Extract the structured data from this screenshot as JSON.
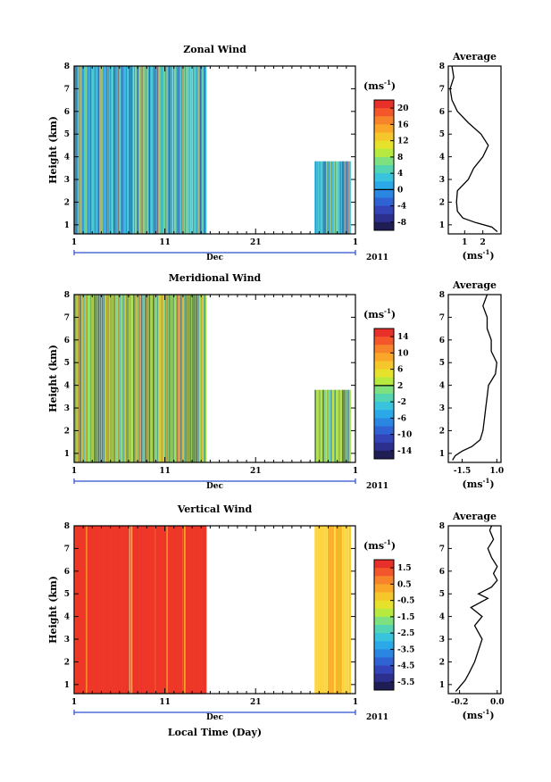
{
  "chart_data": [
    {
      "type": "heatmap",
      "title": "Zonal Wind",
      "ylabel": "Height (km)",
      "ylim": [
        0.6,
        8
      ],
      "yticks": [
        1,
        2,
        3,
        4,
        5,
        6,
        7,
        8
      ],
      "xlim": [
        1,
        32
      ],
      "xticks": [
        "1",
        "11",
        "21",
        "1"
      ],
      "xaxis_month": "Dec",
      "xaxis_year": "2011",
      "colorbar_unit": "(ms",
      "unit_exponent": "-1",
      "colorbar_labels": [
        "20",
        "16",
        "12",
        "8",
        "4",
        "0",
        "-4",
        "-8"
      ],
      "colorbar_colors": [
        "#e8302a",
        "#f2562a",
        "#f7832a",
        "#f9a629",
        "#f5c72a",
        "#e6e22c",
        "#b7ea3f",
        "#7ee07e",
        "#53d4b3",
        "#38c4dc",
        "#2aa8e8",
        "#2a86e0",
        "#2f62d2",
        "#3344b8",
        "#2c2f8e",
        "#1e1e55"
      ],
      "data_segments": [
        {
          "start_day": 1,
          "end_day": 15.6
        },
        {
          "start_day": 27.5,
          "end_day": 31.5
        }
      ],
      "dominant_color": "#48c8e0",
      "profile": {
        "title": "Average",
        "xlabel": "(ms",
        "xticks": [
          "1",
          "2"
        ],
        "xticks_values": [
          1,
          2
        ],
        "xlim": [
          0.1,
          3.0
        ],
        "height": [
          0.7,
          0.9,
          1.1,
          1.3,
          1.6,
          2.0,
          2.5,
          3.0,
          3.5,
          4.0,
          4.5,
          5.0,
          5.5,
          6.0,
          6.5,
          7.0,
          7.5,
          8.0
        ],
        "value": [
          2.8,
          2.5,
          1.6,
          0.9,
          0.6,
          0.55,
          0.6,
          1.2,
          1.5,
          2.0,
          2.3,
          1.9,
          1.2,
          0.6,
          0.3,
          0.2,
          0.4,
          0.3
        ]
      }
    },
    {
      "type": "heatmap",
      "title": "Meridional Wind",
      "ylabel": "Height (km)",
      "ylim": [
        0.6,
        8
      ],
      "yticks": [
        1,
        2,
        3,
        4,
        5,
        6,
        7,
        8
      ],
      "xlim": [
        1,
        32
      ],
      "xticks": [
        "1",
        "11",
        "21",
        "1"
      ],
      "xaxis_month": "Dec",
      "xaxis_year": "2011",
      "colorbar_unit": "(ms",
      "unit_exponent": "-1",
      "colorbar_labels": [
        "14",
        "10",
        "6",
        "2",
        "-2",
        "-6",
        "-10",
        "-14"
      ],
      "colorbar_colors": [
        "#e8302a",
        "#f2562a",
        "#f7832a",
        "#f9a629",
        "#f5c72a",
        "#e6e22c",
        "#b7ea3f",
        "#7ee07e",
        "#53d4b3",
        "#38c4dc",
        "#2aa8e8",
        "#2a86e0",
        "#2f62d2",
        "#3344b8",
        "#2c2f8e",
        "#1e1e55"
      ],
      "data_segments": [
        {
          "start_day": 1,
          "end_day": 15.6
        },
        {
          "start_day": 27.5,
          "end_day": 31.5
        }
      ],
      "dominant_color": "#a8e25a",
      "profile": {
        "title": "Average",
        "xlabel": "(ms",
        "xticks": [
          "-1.5",
          "1.0"
        ],
        "xticks_values": [
          -1.5,
          1.0
        ],
        "xlim": [
          -2.5,
          1.3
        ],
        "height": [
          0.7,
          0.9,
          1.1,
          1.3,
          1.6,
          2.0,
          2.5,
          3.0,
          3.5,
          4.0,
          4.5,
          5.0,
          5.5,
          6.0,
          6.5,
          7.0,
          7.5,
          8.0
        ],
        "value": [
          -2.2,
          -2.0,
          -1.5,
          -0.8,
          -0.2,
          0.0,
          0.1,
          0.2,
          0.3,
          0.4,
          0.9,
          1.0,
          0.6,
          0.6,
          0.3,
          0.3,
          0.0,
          0.3
        ]
      }
    },
    {
      "type": "heatmap",
      "title": "Vertical Wind",
      "ylabel": "Height (km)",
      "ylim": [
        0.6,
        8
      ],
      "yticks": [
        1,
        2,
        3,
        4,
        5,
        6,
        7,
        8
      ],
      "xlim": [
        1,
        32
      ],
      "xticks": [
        "1",
        "11",
        "21",
        "1"
      ],
      "xaxis_month": "Dec",
      "xaxis_year": "2011",
      "xlabel": "Local Time (Day)",
      "colorbar_unit": "(ms",
      "unit_exponent": "-1",
      "colorbar_labels": [
        "1.5",
        "0.5",
        "-0.5",
        "-1.5",
        "-2.5",
        "-3.5",
        "-4.5",
        "-5.5"
      ],
      "colorbar_colors": [
        "#e8302a",
        "#f2562a",
        "#f7832a",
        "#f9a629",
        "#f5c72a",
        "#e6e22c",
        "#b7ea3f",
        "#7ee07e",
        "#53d4b3",
        "#38c4dc",
        "#2aa8e8",
        "#2a86e0",
        "#2f62d2",
        "#3344b8",
        "#2c2f8e",
        "#1e1e55"
      ],
      "data_segments": [
        {
          "start_day": 1,
          "end_day": 15.6
        },
        {
          "start_day": 27.5,
          "end_day": 31.5
        }
      ],
      "dominant_color": "#ee3a2a",
      "profile": {
        "title": "Average",
        "xlabel": "(ms",
        "xticks": [
          "-0.2",
          "0.0"
        ],
        "xticks_values": [
          -0.2,
          0.0
        ],
        "xlim": [
          -0.26,
          0.02
        ],
        "height": [
          0.7,
          0.9,
          1.2,
          1.5,
          2.0,
          2.5,
          3.0,
          3.3,
          3.6,
          4.0,
          4.4,
          4.8,
          5.0,
          5.3,
          5.6,
          5.9,
          6.2,
          6.6,
          7.0,
          7.4,
          7.8,
          8.0
        ],
        "value": [
          -0.22,
          -0.2,
          -0.17,
          -0.15,
          -0.12,
          -0.1,
          -0.08,
          -0.1,
          -0.12,
          -0.08,
          -0.14,
          -0.05,
          -0.1,
          -0.03,
          0.0,
          -0.02,
          0.0,
          -0.03,
          -0.05,
          -0.02,
          -0.04,
          -0.03
        ]
      }
    }
  ]
}
